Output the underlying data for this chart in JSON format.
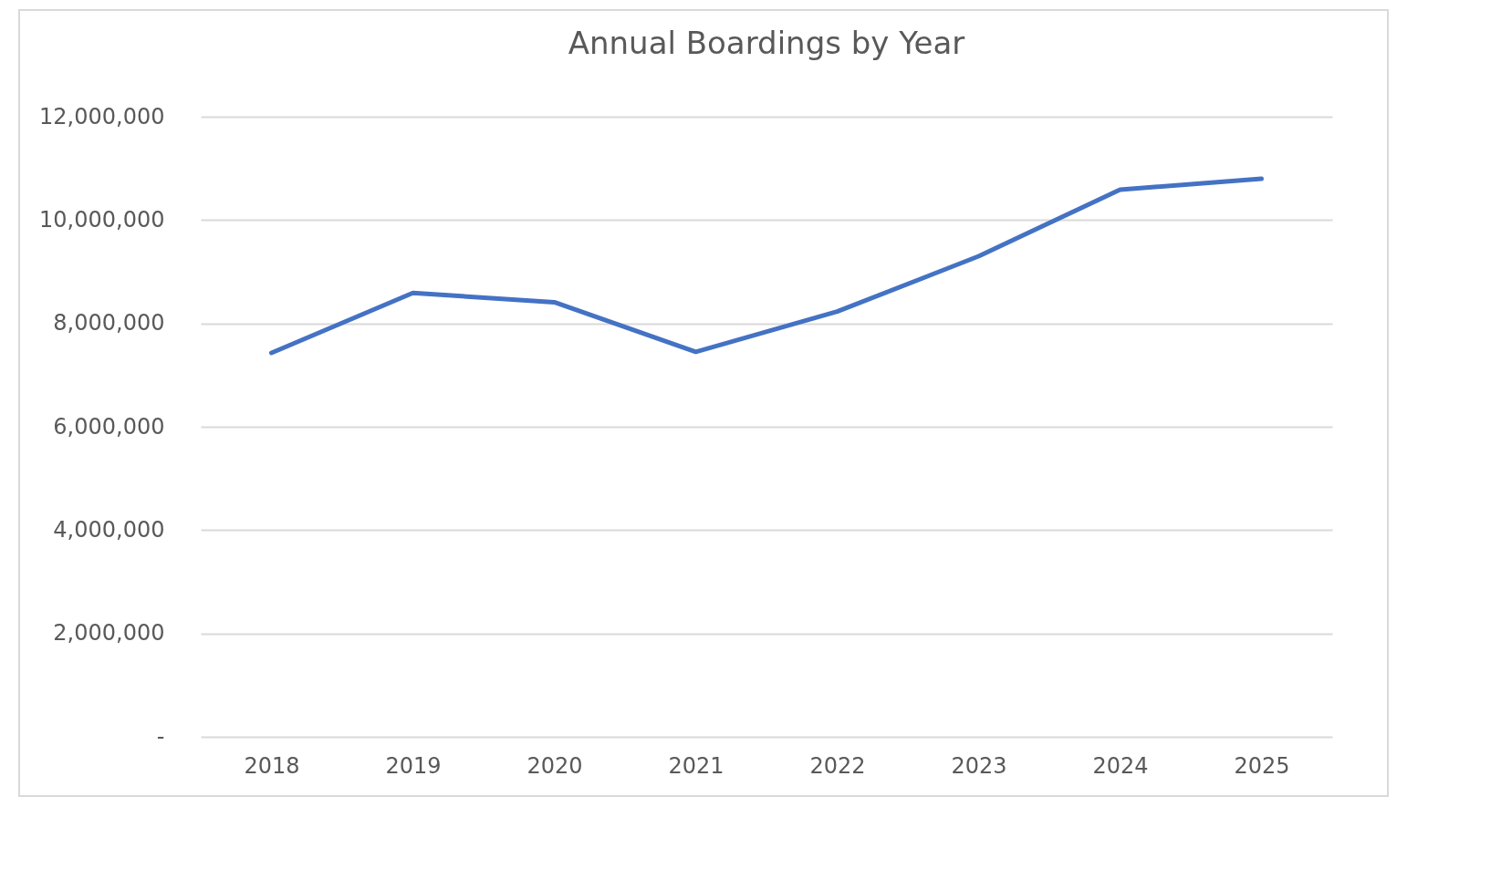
{
  "chart_data": {
    "type": "line",
    "title": "Annual Boardings by Year",
    "categories": [
      "2018",
      "2019",
      "2020",
      "2021",
      "2022",
      "2023",
      "2024",
      "2025"
    ],
    "series": [
      {
        "color": "#4472c4",
        "values": [
          7430000,
          8590000,
          8410000,
          7450000,
          8230000,
          9300000,
          10590000,
          10800000
        ]
      }
    ],
    "ylim": [
      0,
      12000000
    ],
    "yticks": [
      {
        "value": 0,
        "label": "-"
      },
      {
        "value": 2000000,
        "label": "2,000,000"
      },
      {
        "value": 4000000,
        "label": "4,000,000"
      },
      {
        "value": 6000000,
        "label": "6,000,000"
      },
      {
        "value": 8000000,
        "label": "8,000,000"
      },
      {
        "value": 10000000,
        "label": "10,000,000"
      },
      {
        "value": 12000000,
        "label": "12,000,000"
      }
    ],
    "grid": "y",
    "legend": false,
    "marker": "none",
    "line_style": "solid"
  }
}
